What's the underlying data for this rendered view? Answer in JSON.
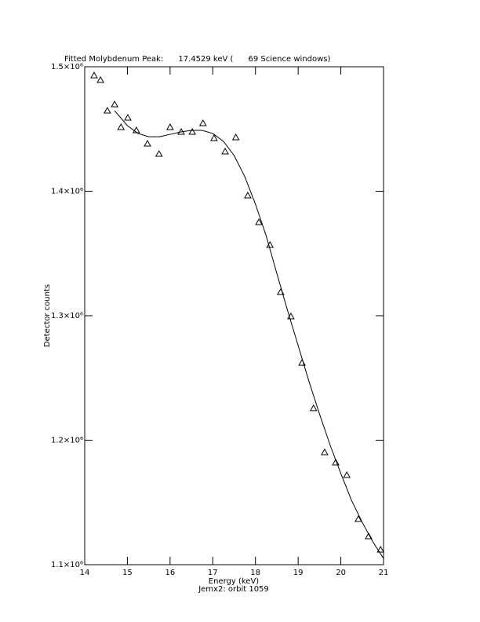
{
  "chart_data": {
    "type": "scatter",
    "title": "Fitted Molybdenum Peak:      17.4529 keV (      69 Science windows)",
    "x_label": "Energy (keV)",
    "y_label": "Detector counts",
    "footer": "Jemx2: orbit 1059",
    "xlim": [
      14,
      21
    ],
    "xticks": [
      14,
      15,
      16,
      17,
      18,
      19,
      20,
      21
    ],
    "ylim": [
      1100000,
      1500000
    ],
    "yticks": [
      {
        "value": 1100000,
        "label": "1.1×10⁶"
      },
      {
        "value": 1200000,
        "label": "1.2×10⁶"
      },
      {
        "value": 1300000,
        "label": "1.3×10⁶"
      },
      {
        "value": 1400000,
        "label": "1.4×10⁶"
      },
      {
        "value": 1500000,
        "label": "1.5×10⁶"
      }
    ],
    "color": "#000000",
    "series": [
      {
        "mode": "markers",
        "marker": "triangle",
        "x": [
          14.22,
          14.37,
          14.53,
          14.7,
          14.85,
          15.01,
          15.21,
          15.47,
          15.74,
          16.0,
          16.26,
          16.52,
          16.77,
          17.03,
          17.29,
          17.54,
          17.82,
          18.08,
          18.34,
          18.59,
          18.83,
          19.09,
          19.36,
          19.62,
          19.88,
          20.14,
          20.41,
          20.65,
          20.93
        ],
        "values": [
          1493000,
          1489300,
          1464700,
          1469700,
          1451400,
          1459000,
          1448900,
          1438200,
          1430000,
          1451400,
          1447600,
          1447600,
          1454600,
          1442600,
          1431900,
          1443200,
          1396500,
          1375100,
          1356800,
          1318900,
          1299400,
          1262100,
          1225600,
          1190200,
          1182000,
          1171900,
          1136600,
          1122700,
          1112000
        ]
      },
      {
        "mode": "line",
        "x": [
          14.7,
          15.0,
          15.25,
          15.5,
          15.75,
          16.0,
          16.25,
          16.5,
          16.75,
          17.0,
          17.25,
          17.5,
          17.75,
          18.0,
          18.25,
          18.5,
          18.75,
          19.0,
          19.25,
          19.5,
          19.75,
          20.0,
          20.25,
          20.5,
          20.75,
          21.0
        ],
        "values": [
          1464700,
          1452700,
          1446400,
          1443800,
          1443800,
          1445700,
          1447600,
          1448900,
          1448900,
          1446400,
          1440100,
          1428700,
          1411700,
          1389600,
          1364300,
          1334100,
          1304400,
          1276000,
          1247600,
          1221100,
          1195900,
          1173200,
          1151700,
          1134100,
          1118300,
          1105000
        ]
      }
    ]
  }
}
